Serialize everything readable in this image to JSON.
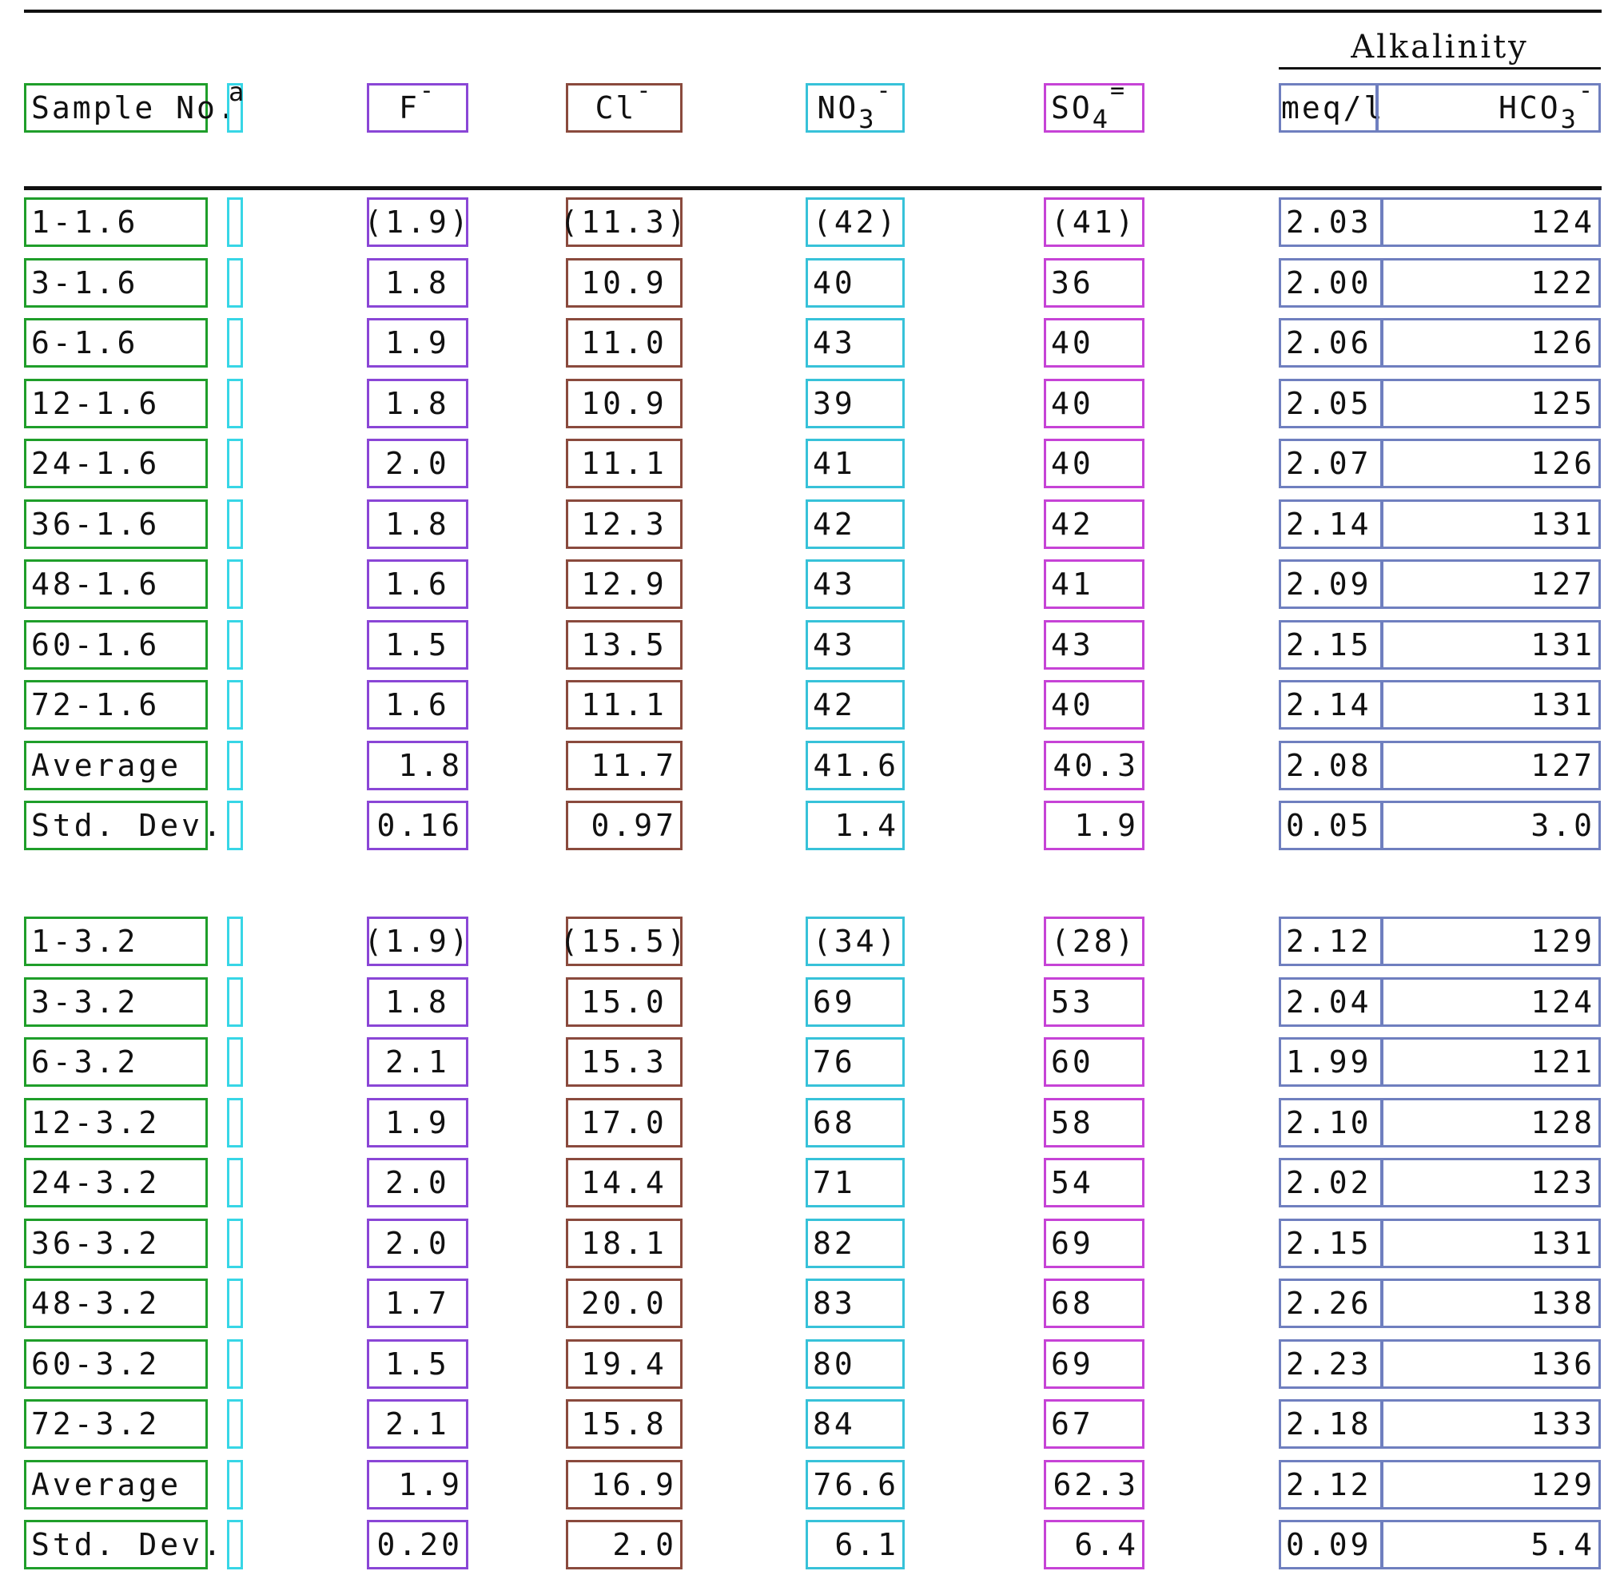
{
  "header": {
    "sample_no": "Sample No.",
    "footnote_mark": "a",
    "f": "F",
    "f_charge": "-",
    "cl": "Cl",
    "cl_charge": "-",
    "no3": "NO",
    "no3_sub": "3",
    "no3_charge": "-",
    "so4": "SO",
    "so4_sub": "4",
    "so4_charge": "=",
    "alkalinity_title": "Alkalinity",
    "meq": "meq/l",
    "hco3": "HCO",
    "hco3_sub": "3",
    "hco3_charge": "-"
  },
  "groups": [
    {
      "rows": [
        {
          "sample": "1-1.6",
          "f": "(1.9)",
          "cl": "(11.3)",
          "no3": "(42)",
          "so4": "(41)",
          "meq": "2.03",
          "hco3": "124"
        },
        {
          "sample": "3-1.6",
          "f": "1.8",
          "cl": "10.9",
          "no3": "40",
          "so4": "36",
          "meq": "2.00",
          "hco3": "122"
        },
        {
          "sample": "6-1.6",
          "f": "1.9",
          "cl": "11.0",
          "no3": "43",
          "so4": "40",
          "meq": "2.06",
          "hco3": "126"
        },
        {
          "sample": "12-1.6",
          "f": "1.8",
          "cl": "10.9",
          "no3": "39",
          "so4": "40",
          "meq": "2.05",
          "hco3": "125"
        },
        {
          "sample": "24-1.6",
          "f": "2.0",
          "cl": "11.1",
          "no3": "41",
          "so4": "40",
          "meq": "2.07",
          "hco3": "126"
        },
        {
          "sample": "36-1.6",
          "f": "1.8",
          "cl": "12.3",
          "no3": "42",
          "so4": "42",
          "meq": "2.14",
          "hco3": "131"
        },
        {
          "sample": "48-1.6",
          "f": "1.6",
          "cl": "12.9",
          "no3": "43",
          "so4": "41",
          "meq": "2.09",
          "hco3": "127"
        },
        {
          "sample": "60-1.6",
          "f": "1.5",
          "cl": "13.5",
          "no3": "43",
          "so4": "43",
          "meq": "2.15",
          "hco3": "131"
        },
        {
          "sample": "72-1.6",
          "f": "1.6",
          "cl": "11.1",
          "no3": "42",
          "so4": "40",
          "meq": "2.14",
          "hco3": "131"
        }
      ],
      "average": {
        "label": "Average",
        "f": "1.8",
        "cl": "11.7",
        "no3": "41.6",
        "so4": "40.3",
        "meq": "2.08",
        "hco3": "127"
      },
      "stddev": {
        "label": "Std. Dev.",
        "f": "0.16",
        "cl": "0.97",
        "no3": "1.4",
        "so4": "1.9",
        "meq": "0.05",
        "hco3": "3.0"
      }
    },
    {
      "rows": [
        {
          "sample": "1-3.2",
          "f": "(1.9)",
          "cl": "(15.5)",
          "no3": "(34)",
          "so4": "(28)",
          "meq": "2.12",
          "hco3": "129"
        },
        {
          "sample": "3-3.2",
          "f": "1.8",
          "cl": "15.0",
          "no3": "69",
          "so4": "53",
          "meq": "2.04",
          "hco3": "124"
        },
        {
          "sample": "6-3.2",
          "f": "2.1",
          "cl": "15.3",
          "no3": "76",
          "so4": "60",
          "meq": "1.99",
          "hco3": "121"
        },
        {
          "sample": "12-3.2",
          "f": "1.9",
          "cl": "17.0",
          "no3": "68",
          "so4": "58",
          "meq": "2.10",
          "hco3": "128"
        },
        {
          "sample": "24-3.2",
          "f": "2.0",
          "cl": "14.4",
          "no3": "71",
          "so4": "54",
          "meq": "2.02",
          "hco3": "123"
        },
        {
          "sample": "36-3.2",
          "f": "2.0",
          "cl": "18.1",
          "no3": "82",
          "so4": "69",
          "meq": "2.15",
          "hco3": "131"
        },
        {
          "sample": "48-3.2",
          "f": "1.7",
          "cl": "20.0",
          "no3": "83",
          "so4": "68",
          "meq": "2.26",
          "hco3": "138"
        },
        {
          "sample": "60-3.2",
          "f": "1.5",
          "cl": "19.4",
          "no3": "80",
          "so4": "69",
          "meq": "2.23",
          "hco3": "136"
        },
        {
          "sample": "72-3.2",
          "f": "2.1",
          "cl": "15.8",
          "no3": "84",
          "so4": "67",
          "meq": "2.18",
          "hco3": "133"
        }
      ],
      "average": {
        "label": "Average",
        "f": "1.9",
        "cl": "16.9",
        "no3": "76.6",
        "so4": "62.3",
        "meq": "2.12",
        "hco3": "129"
      },
      "stddev": {
        "label": "Std. Dev.",
        "f": "0.20",
        "cl": "2.0",
        "no3": "6.1",
        "so4": "6.4",
        "meq": "0.09",
        "hco3": "5.4"
      }
    }
  ]
}
